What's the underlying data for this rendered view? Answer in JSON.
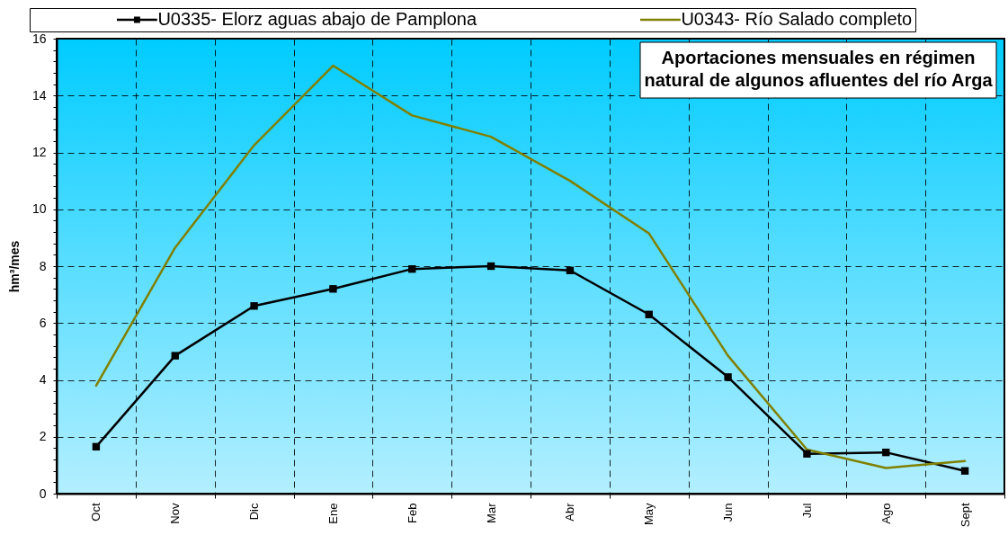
{
  "chart_data": {
    "type": "line",
    "title": "Aportaciones mensuales en régimen\nnatural de algunos afluentes del río Arga",
    "ylabel": "hm³/mes",
    "categories": [
      "Oct",
      "Nov",
      "Dic",
      "Ene",
      "Feb",
      "Mar",
      "Abr",
      "May",
      "Jun",
      "Jul",
      "Ago",
      "Sept"
    ],
    "series": [
      {
        "name": "U0335- Elorz aguas abajo de Pamplona",
        "color": "#000000",
        "marker": "square",
        "values": [
          1.65,
          4.85,
          6.6,
          7.2,
          7.9,
          8.0,
          7.85,
          6.3,
          4.1,
          1.4,
          1.45,
          0.8
        ]
      },
      {
        "name": "U0343- Río Salado completo",
        "color": "#808000",
        "values": [
          3.8,
          8.65,
          12.25,
          15.05,
          13.3,
          12.55,
          11.0,
          9.15,
          4.85,
          1.55,
          0.9,
          1.15
        ]
      }
    ],
    "ylim": [
      0,
      16
    ],
    "yticks": [
      0,
      {
        "value": 0.4,
        "label": null
      },
      {
        "value": 0.8,
        "label": null
      },
      {
        "value": 1.2,
        "label": null
      },
      {
        "value": 1.6,
        "label": null
      },
      2,
      {
        "value": 2.4,
        "label": null
      },
      {
        "value": 2.8,
        "label": null
      },
      {
        "value": 3.2,
        "label": null
      },
      {
        "value": 3.6,
        "label": null
      },
      4,
      {
        "value": 4.4,
        "label": null
      },
      {
        "value": 4.8,
        "label": null
      },
      {
        "value": 5.2,
        "label": null
      },
      {
        "value": 5.6,
        "label": null
      },
      6,
      {
        "value": 6.4,
        "label": null
      },
      {
        "value": 6.8,
        "label": null
      },
      {
        "value": 7.2,
        "label": null
      },
      {
        "value": 7.6,
        "label": null
      },
      8,
      {
        "value": 8.4,
        "label": null
      },
      {
        "value": 8.8,
        "label": null
      },
      {
        "value": 9.2,
        "label": null
      },
      {
        "value": 9.6,
        "label": null
      },
      10,
      {
        "value": 10.4,
        "label": null
      },
      {
        "value": 10.8,
        "label": null
      },
      {
        "value": 11.2,
        "label": null
      },
      {
        "value": 11.6,
        "label": null
      },
      12,
      {
        "value": 12.4,
        "label": null
      },
      {
        "value": 12.8,
        "label": null
      },
      {
        "value": 13.2,
        "label": null
      },
      {
        "value": 13.6,
        "label": null
      },
      14,
      {
        "value": 14.4,
        "label": null
      },
      {
        "value": 14.8,
        "label": null
      },
      {
        "value": 15.2,
        "label": null
      },
      {
        "value": 15.6,
        "label": null
      },
      16
    ],
    "grid": true,
    "legend": "top"
  }
}
